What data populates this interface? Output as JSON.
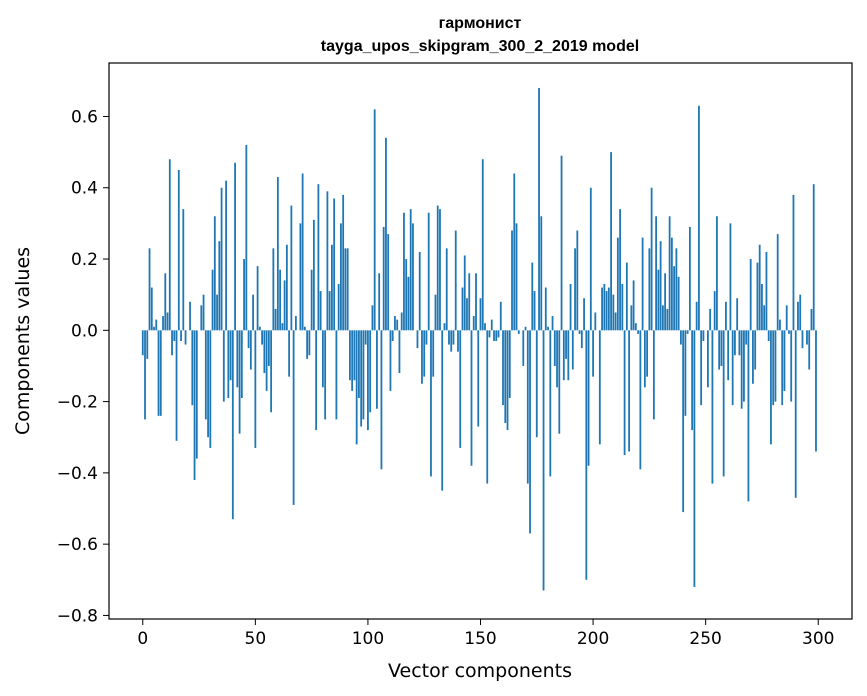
{
  "chart_data": {
    "type": "bar",
    "title_line1": "гармонист",
    "title_line2": "tayga_upos_skipgram_300_2_2019 model",
    "xlabel": "Vector components",
    "ylabel": "Components values",
    "xlim": [
      -15,
      315
    ],
    "ylim": [
      -0.81,
      0.75
    ],
    "x_ticks": [
      0,
      50,
      100,
      150,
      200,
      250,
      300
    ],
    "y_ticks": [
      -0.8,
      -0.6,
      -0.4,
      -0.2,
      0.0,
      0.2,
      0.4,
      0.6
    ],
    "x_tick_labels": [
      "0",
      "50",
      "100",
      "150",
      "200",
      "250",
      "300"
    ],
    "y_tick_labels": [
      "−0.8",
      "−0.6",
      "−0.4",
      "−0.2",
      "0.0",
      "0.2",
      "0.4",
      "0.6"
    ],
    "bar_color": "#1f77b4",
    "grid": false,
    "legend": "none",
    "values": [
      -0.07,
      -0.25,
      -0.08,
      0.23,
      0.12,
      0.01,
      0.03,
      -0.24,
      -0.24,
      0.04,
      0.16,
      0.05,
      0.48,
      -0.07,
      -0.03,
      -0.31,
      0.45,
      -0.03,
      0.34,
      -0.04,
      0.0,
      0.08,
      -0.21,
      -0.42,
      -0.36,
      0.0,
      0.07,
      0.1,
      -0.25,
      -0.3,
      -0.33,
      0.17,
      0.32,
      0.1,
      0.25,
      0.4,
      -0.2,
      0.42,
      -0.19,
      -0.14,
      -0.53,
      0.47,
      -0.16,
      -0.29,
      -0.19,
      0.2,
      0.52,
      -0.05,
      -0.11,
      0.1,
      -0.33,
      0.18,
      0.01,
      -0.04,
      -0.12,
      -0.17,
      -0.1,
      -0.23,
      0.23,
      0.06,
      0.43,
      0.17,
      0.02,
      0.14,
      0.24,
      -0.13,
      0.35,
      -0.49,
      0.04,
      0.0,
      0.3,
      0.44,
      0.01,
      -0.08,
      -0.07,
      0.17,
      0.31,
      -0.28,
      0.41,
      0.11,
      -0.16,
      -0.25,
      0.39,
      0.11,
      0.24,
      0.37,
      -0.25,
      0.13,
      0.3,
      0.38,
      0.23,
      0.23,
      -0.14,
      -0.17,
      -0.14,
      -0.32,
      -0.19,
      -0.27,
      -0.25,
      -0.04,
      -0.28,
      -0.23,
      0.07,
      0.62,
      -0.22,
      0.16,
      -0.39,
      0.29,
      0.54,
      0.27,
      -0.17,
      -0.03,
      0.04,
      0.03,
      -0.12,
      0.05,
      0.33,
      0.2,
      0.15,
      0.34,
      0.3,
      0.0,
      -0.05,
      0.22,
      -0.15,
      -0.13,
      -0.04,
      0.33,
      -0.41,
      -0.13,
      0.1,
      0.35,
      0.34,
      -0.45,
      0.02,
      0.23,
      -0.04,
      -0.06,
      -0.04,
      0.28,
      -0.06,
      -0.33,
      0.12,
      0.21,
      0.09,
      0.16,
      -0.38,
      0.04,
      0.16,
      -0.27,
      0.09,
      0.48,
      0.02,
      -0.43,
      -0.02,
      0.03,
      -0.03,
      -0.03,
      -0.02,
      0.08,
      -0.21,
      -0.26,
      -0.28,
      -0.19,
      0.28,
      0.44,
      0.3,
      -0.01,
      0.0,
      -0.1,
      0.01,
      -0.43,
      -0.57,
      0.19,
      0.11,
      -0.3,
      0.68,
      0.32,
      -0.73,
      0.12,
      0.01,
      -0.41,
      0.04,
      -0.1,
      -0.16,
      -0.29,
      0.49,
      -0.14,
      -0.08,
      -0.14,
      0.13,
      -0.11,
      0.23,
      0.28,
      -0.01,
      -0.05,
      0.09,
      -0.7,
      -0.38,
      0.4,
      -0.13,
      0.05,
      0.0,
      -0.32,
      0.12,
      0.13,
      0.11,
      0.12,
      0.5,
      0.1,
      0.05,
      0.26,
      0.34,
      0.13,
      -0.35,
      0.19,
      -0.34,
      0.07,
      0.14,
      0.02,
      -0.01,
      -0.39,
      0.26,
      -0.16,
      -0.13,
      0.23,
      0.4,
      -0.25,
      0.32,
      0.17,
      0.25,
      0.07,
      0.16,
      0.06,
      0.32,
      0.26,
      0.18,
      0.23,
      0.15,
      -0.04,
      -0.51,
      -0.24,
      -0.01,
      0.29,
      -0.28,
      -0.72,
      0.08,
      0.63,
      -0.21,
      -0.03,
      0.0,
      -0.16,
      0.06,
      -0.43,
      0.11,
      0.32,
      -0.11,
      -0.1,
      -0.41,
      0.08,
      -0.14,
      0.3,
      -0.21,
      -0.07,
      0.09,
      -0.07,
      -0.22,
      -0.2,
      -0.04,
      -0.48,
      0.2,
      -0.15,
      -0.11,
      0.19,
      0.24,
      0.13,
      0.07,
      0.22,
      -0.03,
      -0.32,
      -0.21,
      -0.2,
      0.27,
      0.03,
      -0.21,
      -0.17,
      0.07,
      -0.01,
      -0.2,
      0.38,
      -0.47,
      0.08,
      0.1,
      -0.05,
      0.0,
      -0.04,
      -0.11,
      0.06,
      0.41,
      -0.34
    ]
  }
}
